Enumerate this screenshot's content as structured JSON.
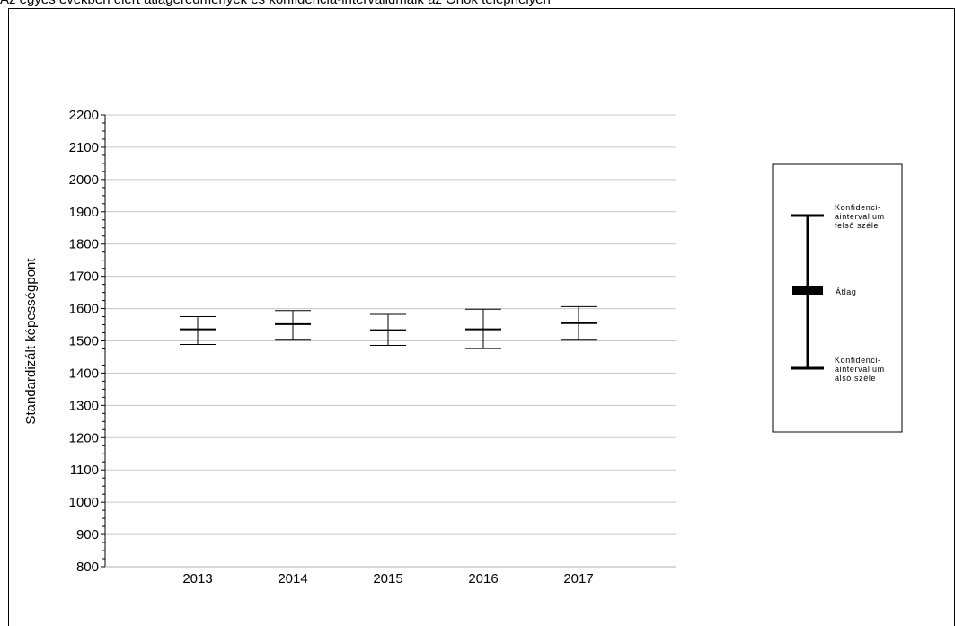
{
  "chart_data": {
    "type": "errorbar",
    "title": "Az egyes években elért átlageredmények és konfidencia-intervallumaik az Önök telephelyén",
    "ylabel": "Standardizált képességpont",
    "xlabel": "",
    "ylim": [
      800,
      2200
    ],
    "ytick_step": 100,
    "grid": "horizontal",
    "categories": [
      "2013",
      "2014",
      "2015",
      "2016",
      "2017"
    ],
    "series": [
      {
        "mean": [
          1536,
          1552,
          1533,
          1536,
          1555
        ],
        "lower": [
          1489,
          1502,
          1486,
          1476,
          1502
        ],
        "upper": [
          1575,
          1594,
          1582,
          1598,
          1606
        ]
      }
    ],
    "legend": {
      "position": "right",
      "upper_label": [
        "Konfidenci-",
        "aintervallum",
        "felső széle"
      ],
      "mean_label": "Átlag",
      "lower_label": [
        "Konfidenci-",
        "aintervallum",
        "alsó széle"
      ]
    },
    "colors": {
      "line": "#000000",
      "grid": "#c8c8c8"
    }
  }
}
